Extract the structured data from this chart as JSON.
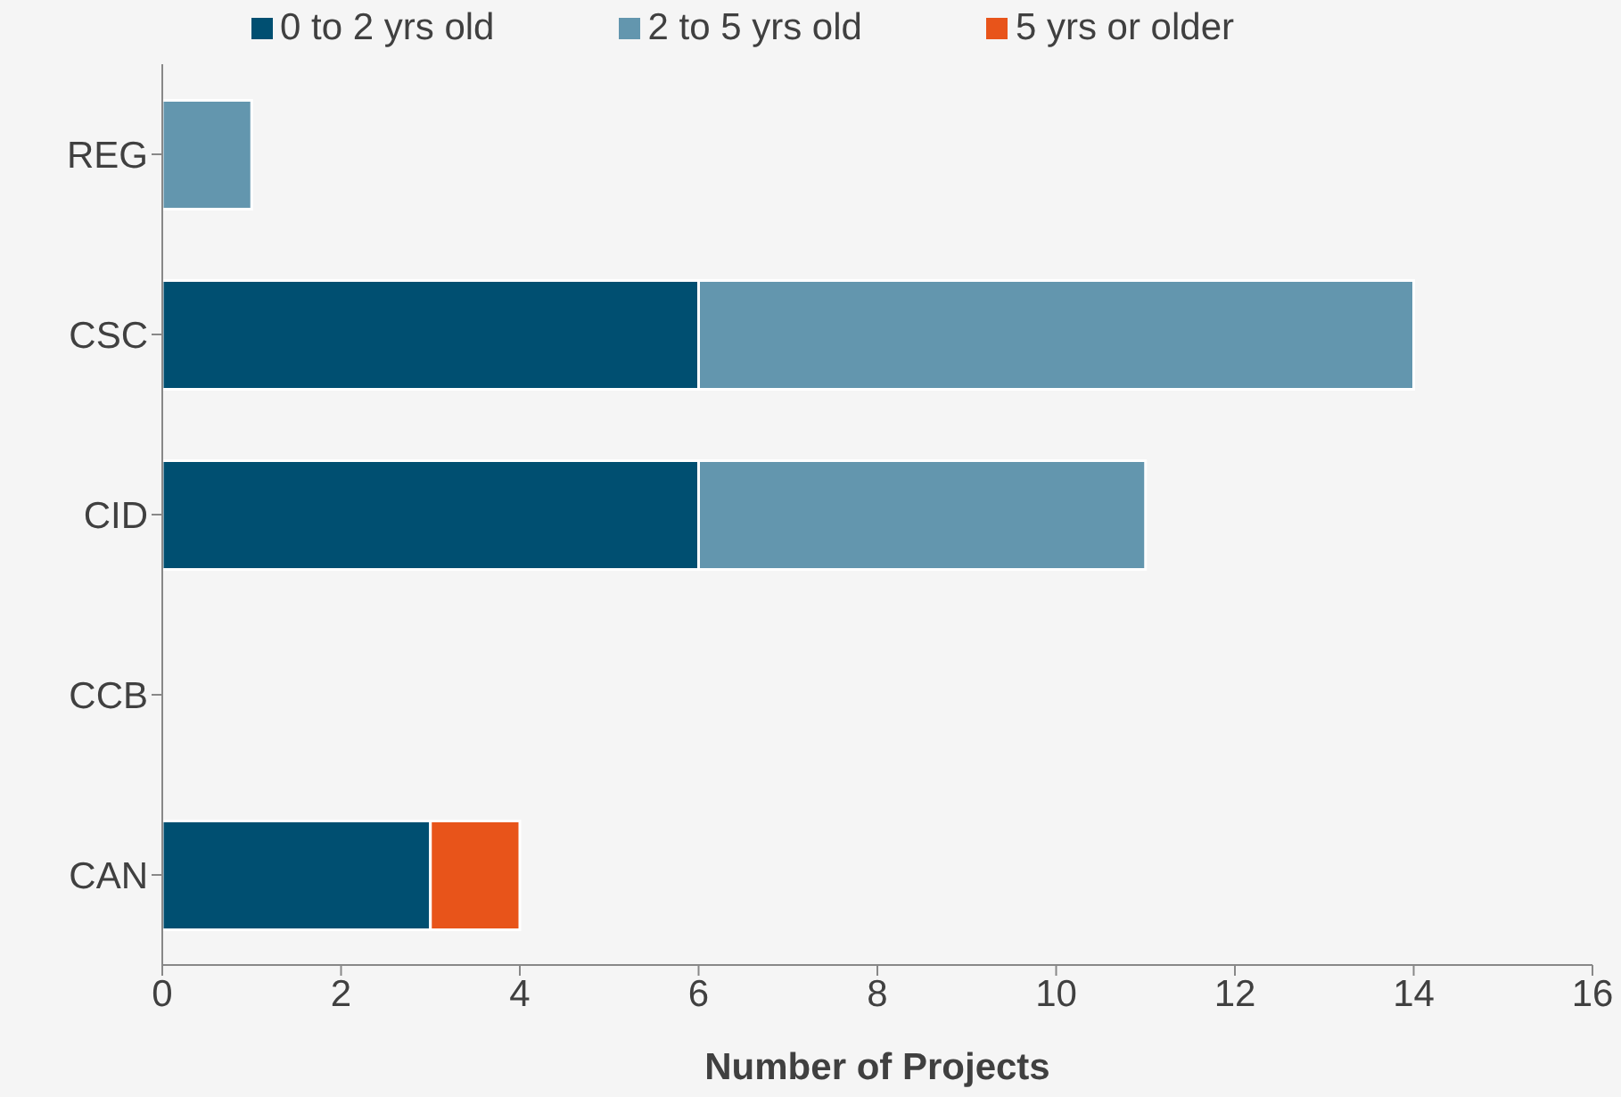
{
  "chart_data": {
    "type": "bar",
    "orientation": "horizontal",
    "stacked": true,
    "xlabel": "Number of Projects",
    "categories": [
      "REG",
      "CSC",
      "CID",
      "CCB",
      "CAN"
    ],
    "series": [
      {
        "name": "0 to 2 yrs old",
        "color": "#004f71",
        "values": [
          0,
          6,
          6,
          0,
          3
        ]
      },
      {
        "name": "2 to 5 yrs old",
        "color": "#6396ae",
        "values": [
          1,
          8,
          5,
          0,
          0
        ]
      },
      {
        "name": "5 yrs or older",
        "color": "#e8541a",
        "values": [
          0,
          0,
          0,
          0,
          1
        ]
      }
    ],
    "xlim": [
      0,
      16
    ],
    "xticks": [
      0,
      2,
      4,
      6,
      8,
      10,
      12,
      14,
      16
    ],
    "grid": false,
    "legend": "top"
  }
}
